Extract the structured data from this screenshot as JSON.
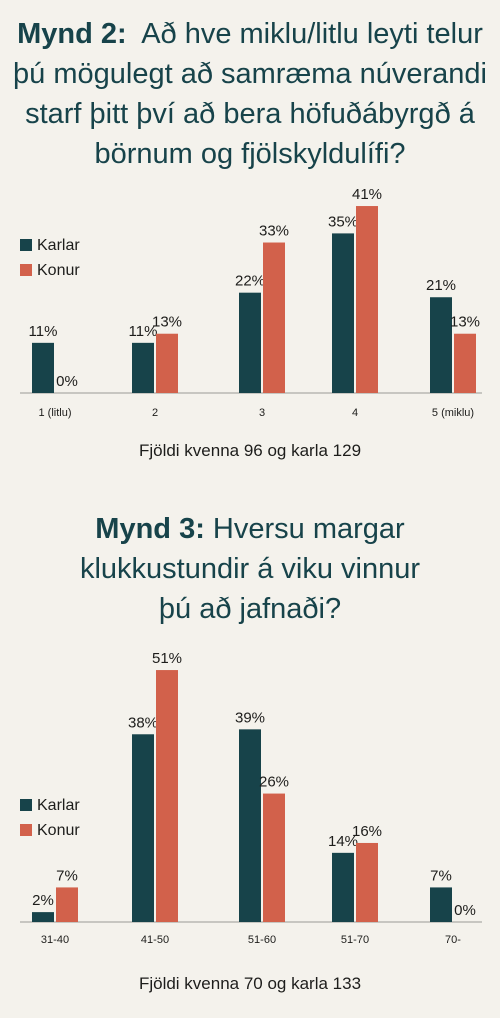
{
  "colors": {
    "karlar": "#17434a",
    "konur": "#d2614b",
    "title": "#17434a"
  },
  "chart_data": [
    {
      "type": "bar",
      "title_prefix": "Mynd 2:",
      "title_line1": "Að hve miklu/litlu leyti telur",
      "title_line2": "þú mögulegt að samræma núverandi",
      "title_line3": "starf þitt því að bera höfuðábyrgð á",
      "title_line4": "börnum og fjölskyldulífi?",
      "categories": [
        "1 (litlu)",
        "2",
        "3",
        "4",
        "5 (miklu)"
      ],
      "series": [
        {
          "name": "Karlar",
          "values": [
            11,
            11,
            22,
            35,
            21
          ],
          "labels": [
            "11%",
            "11%",
            "22%",
            "35%",
            "21%"
          ]
        },
        {
          "name": "Konur",
          "values": [
            0,
            13,
            33,
            41,
            13
          ],
          "labels": [
            "0%",
            "13%",
            "33%",
            "41%",
            "13%"
          ]
        }
      ],
      "ylim": [
        0,
        45
      ],
      "grid": false,
      "legend_position": "left",
      "note": "Fjöldi kvenna 96 og karla 129"
    },
    {
      "type": "bar",
      "title_prefix": "Mynd 3:",
      "title_line1": "Hversu margar",
      "title_line2": "klukkustundir á viku vinnur",
      "title_line3": "þú að jafnaði?",
      "categories": [
        "31-40",
        "41-50",
        "51-60",
        "51-70",
        "70-"
      ],
      "series": [
        {
          "name": "Karlar",
          "values": [
            2,
            38,
            39,
            14,
            7
          ],
          "labels": [
            "2%",
            "38%",
            "39%",
            "14%",
            "7%"
          ]
        },
        {
          "name": "Konur",
          "values": [
            7,
            51,
            26,
            16,
            0
          ],
          "labels": [
            "7%",
            "51%",
            "26%",
            "16%",
            "0%"
          ]
        }
      ],
      "ylim": [
        0,
        55
      ],
      "grid": false,
      "legend_position": "left",
      "note": "Fjöldi kvenna 70 og karla 133"
    }
  ]
}
